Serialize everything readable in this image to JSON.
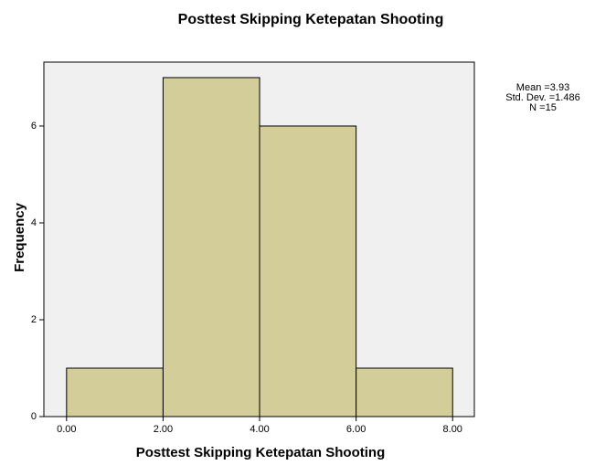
{
  "chart_data": {
    "type": "histogram",
    "title": "Posttest Skipping Ketepatan Shooting",
    "x_label": "Posttest Skipping Ketepatan Shooting",
    "y_label": "Frequency",
    "bins": [
      0,
      2,
      4,
      6,
      8
    ],
    "values": [
      1,
      7,
      6,
      1
    ],
    "color": "#d3ce99",
    "xlim": [
      -0.47,
      8.45
    ],
    "ylim": [
      0,
      7.32
    ],
    "xticks": [
      {
        "value": 0,
        "label": "0.00"
      },
      {
        "value": 2,
        "label": "2.00"
      },
      {
        "value": 4,
        "label": "4.00"
      },
      {
        "value": 6,
        "label": "6.00"
      },
      {
        "value": 8,
        "label": "8.00"
      }
    ],
    "yticks": [
      0,
      2,
      4,
      6
    ],
    "annotations": [
      "Mean =3.93",
      "Std. Dev. =1.486",
      "N =15"
    ]
  }
}
